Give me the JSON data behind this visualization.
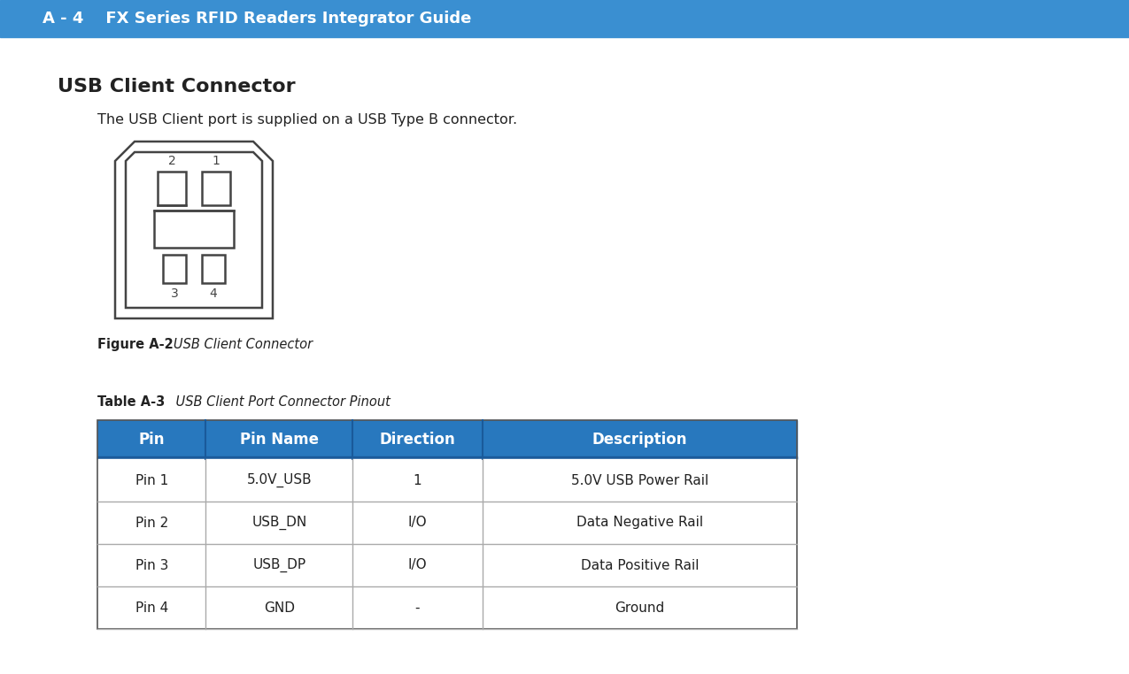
{
  "page_bg": "#ffffff",
  "title_bar_text": "A - 4    FX Series RFID Readers Integrator Guide",
  "title_bar_bg": "#3a8fd1",
  "title_bar_text_color": "#ffffff",
  "title_bar_height": 42,
  "section_title": "USB Client Connector",
  "section_subtitle": "The USB Client port is supplied on a USB Type B connector.",
  "figure_label_bold": "Figure A-2",
  "figure_label_italic": "   USB Client Connector",
  "table_label_bold": "Table A-3",
  "table_label_italic": "    USB Client Port Connector Pinout",
  "table_headers": [
    "Pin",
    "Pin Name",
    "Direction",
    "Description"
  ],
  "table_rows": [
    [
      "Pin 1",
      "5.0V_USB",
      "1",
      "5.0V USB Power Rail"
    ],
    [
      "Pin 2",
      "USB_DN",
      "I/O",
      "Data Negative Rail"
    ],
    [
      "Pin 3",
      "USB_DP",
      "I/O",
      "Data Positive Rail"
    ],
    [
      "Pin 4",
      "GND",
      "-",
      "Ground"
    ]
  ],
  "table_header_bg": "#2878be",
  "table_header_border_bottom": "#1a5a9a",
  "table_col_divider": "#aaaaaa",
  "table_row_line": "#aaaaaa",
  "table_outer_border": "#777777",
  "header_text_color": "#ffffff",
  "body_text_color": "#222222",
  "connector_color": "#444444",
  "col_ratios": [
    0.155,
    0.21,
    0.185,
    0.45
  ]
}
